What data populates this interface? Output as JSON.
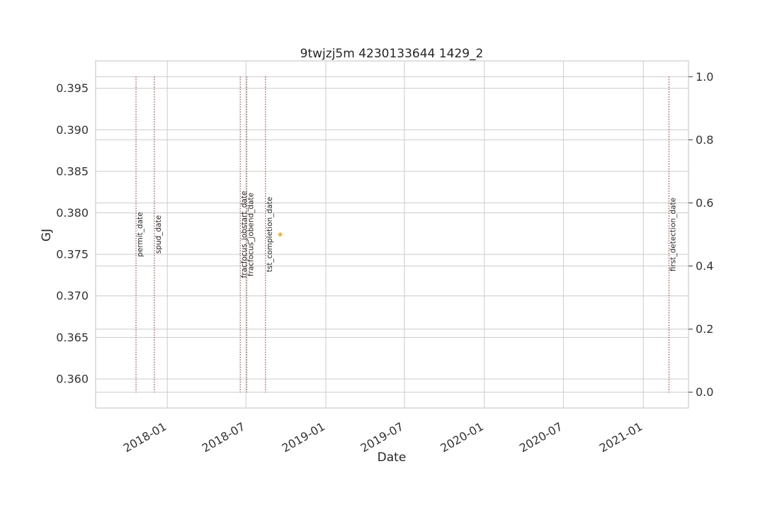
{
  "chart_data": {
    "type": "scatter",
    "title": "9twjzj5m 4230133644 1429_2",
    "xlabel": "Date",
    "ylabel": "GJ",
    "ylabel_color": "#1f77b4",
    "x_axis": {
      "type": "date",
      "range": [
        "2017-07-20",
        "2021-04-15"
      ],
      "ticks": [
        "2018-01",
        "2018-07",
        "2019-01",
        "2019-07",
        "2020-01",
        "2020-07",
        "2021-01"
      ]
    },
    "y_left": {
      "range": [
        0.3565,
        0.3983
      ],
      "ticks": [
        "0.360",
        "0.365",
        "0.370",
        "0.375",
        "0.380",
        "0.385",
        "0.390",
        "0.395"
      ]
    },
    "y_right": {
      "range": [
        -0.05,
        1.05
      ],
      "ticks": [
        "0.0",
        "0.2",
        "0.4",
        "0.6",
        "0.8",
        "1.0"
      ]
    },
    "grid": true,
    "series": [
      {
        "marker": "star",
        "color": "#ffa500",
        "points": [
          {
            "x": "2018-09-18",
            "y": 0.3774
          }
        ]
      }
    ],
    "events": [
      {
        "label": "permit_date",
        "date": "2017-10-21"
      },
      {
        "label": "spud_date",
        "date": "2017-12-02"
      },
      {
        "label": "fracfocus_jobstart_date",
        "date": "2018-06-18"
      },
      {
        "label": "fracfocus_jobend_date",
        "date": "2018-07-03"
      },
      {
        "label": "tst_completion_date",
        "date": "2018-08-15"
      },
      {
        "label": "first_detection_date",
        "date": "2021-03-01"
      }
    ],
    "event_line_color": "#b04a4a"
  }
}
